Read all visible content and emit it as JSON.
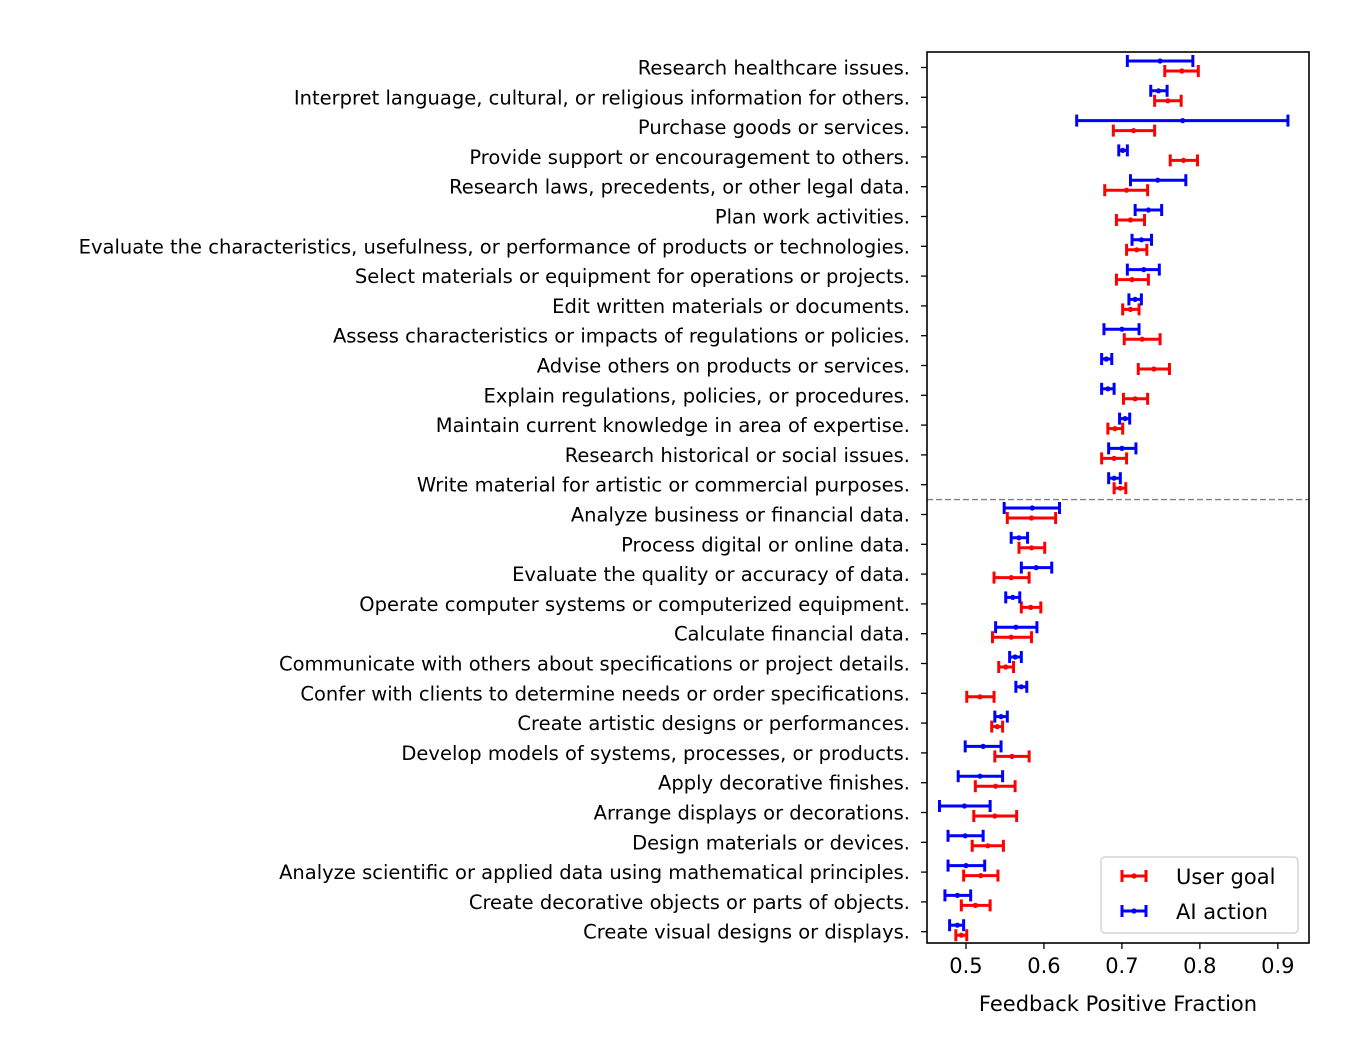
{
  "chart_data": {
    "type": "errorbar",
    "xlabel": "Feedback Positive Fraction",
    "ylabel": "",
    "xlim": [
      0.45,
      0.94
    ],
    "xticks": [
      0.5,
      0.6,
      0.7,
      0.8,
      0.9
    ],
    "xtick_labels": [
      "0.5",
      "0.6",
      "0.7",
      "0.8",
      "0.9"
    ],
    "grid": false,
    "legend_position": "lower right",
    "divider_after_index": 14,
    "divider_style": "dashed gray horizontal line",
    "categories": [
      "Research healthcare issues.",
      "Interpret language, cultural, or religious information for others.",
      "Purchase goods or services.",
      "Provide support or encouragement to others.",
      "Research laws, precedents, or other legal data.",
      "Plan work activities.",
      "Evaluate the characteristics, usefulness, or performance of products or technologies.",
      "Select materials or equipment for operations or projects.",
      "Edit written materials or documents.",
      "Assess characteristics or impacts of regulations or policies.",
      "Advise others on products or services.",
      "Explain regulations, policies, or procedures.",
      "Maintain current knowledge in area of expertise.",
      "Research historical or social issues.",
      "Write material for artistic or commercial purposes.",
      "Analyze business or financial data.",
      "Process digital or online data.",
      "Evaluate the quality or accuracy of data.",
      "Operate computer systems or computerized equipment.",
      "Calculate financial data.",
      "Communicate with others about specifications or project details.",
      "Confer with clients to determine needs or order specifications.",
      "Create artistic designs or performances.",
      "Develop models of systems, processes, or products.",
      "Apply decorative finishes.",
      "Arrange displays or decorations.",
      "Design materials or devices.",
      "Analyze scientific or applied data using mathematical principles.",
      "Create decorative objects or parts of objects.",
      "Create visual designs or displays."
    ],
    "series": [
      {
        "name": "User goal",
        "color": "#ff0000",
        "values": [
          0.777,
          0.759,
          0.715,
          0.779,
          0.706,
          0.711,
          0.719,
          0.713,
          0.711,
          0.726,
          0.741,
          0.717,
          0.691,
          0.69,
          0.698,
          0.584,
          0.584,
          0.558,
          0.583,
          0.558,
          0.551,
          0.518,
          0.54,
          0.559,
          0.538,
          0.537,
          0.528,
          0.519,
          0.512,
          0.494
        ],
        "lower": [
          0.755,
          0.742,
          0.689,
          0.762,
          0.678,
          0.693,
          0.706,
          0.693,
          0.701,
          0.703,
          0.721,
          0.702,
          0.682,
          0.674,
          0.69,
          0.553,
          0.568,
          0.536,
          0.571,
          0.534,
          0.542,
          0.501,
          0.533,
          0.537,
          0.512,
          0.51,
          0.508,
          0.497,
          0.494,
          0.487
        ],
        "upper": [
          0.798,
          0.776,
          0.742,
          0.797,
          0.733,
          0.729,
          0.732,
          0.734,
          0.722,
          0.749,
          0.761,
          0.733,
          0.701,
          0.706,
          0.705,
          0.615,
          0.601,
          0.581,
          0.596,
          0.584,
          0.561,
          0.536,
          0.547,
          0.581,
          0.563,
          0.565,
          0.548,
          0.541,
          0.531,
          0.501
        ]
      },
      {
        "name": "AI action",
        "color": "#0000ff",
        "values": [
          0.749,
          0.747,
          0.778,
          0.701,
          0.746,
          0.734,
          0.725,
          0.728,
          0.717,
          0.7,
          0.68,
          0.682,
          0.704,
          0.7,
          0.69,
          0.585,
          0.568,
          0.59,
          0.56,
          0.564,
          0.563,
          0.571,
          0.545,
          0.522,
          0.518,
          0.498,
          0.499,
          0.5,
          0.489,
          0.489
        ],
        "lower": [
          0.707,
          0.737,
          0.642,
          0.696,
          0.711,
          0.717,
          0.713,
          0.707,
          0.709,
          0.677,
          0.674,
          0.674,
          0.697,
          0.683,
          0.683,
          0.549,
          0.558,
          0.571,
          0.551,
          0.538,
          0.556,
          0.564,
          0.537,
          0.499,
          0.49,
          0.466,
          0.477,
          0.477,
          0.473,
          0.479
        ],
        "upper": [
          0.791,
          0.758,
          0.913,
          0.707,
          0.782,
          0.751,
          0.738,
          0.748,
          0.725,
          0.722,
          0.687,
          0.69,
          0.71,
          0.718,
          0.698,
          0.62,
          0.579,
          0.61,
          0.569,
          0.591,
          0.571,
          0.578,
          0.553,
          0.545,
          0.547,
          0.531,
          0.522,
          0.524,
          0.506,
          0.497
        ]
      }
    ]
  }
}
